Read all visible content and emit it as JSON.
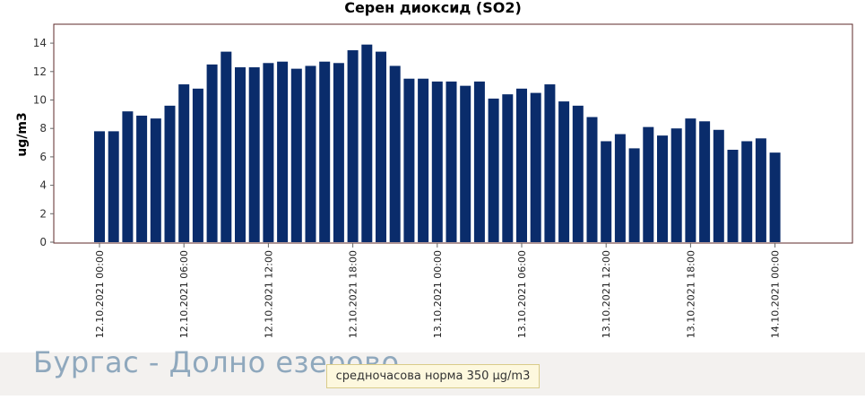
{
  "station": {
    "name": "Бургас - Долно езерово"
  },
  "norm": {
    "text": "средночасова норма 350 µg/m3"
  },
  "colors": {
    "bar": "#0a2c6b",
    "frame": "#5c2a2a",
    "background": "#ffffff"
  },
  "chart_data": {
    "type": "bar",
    "title": "Серен диоксид (SO2)",
    "xlabel": "",
    "ylabel": "ug/m3",
    "ylim": [
      0,
      15.2
    ],
    "yticks": [
      0,
      2,
      4,
      6,
      8,
      10,
      12,
      14
    ],
    "grid": false,
    "legend": "none",
    "x_start": "12.10.2021 00:00",
    "x_end": "14.10.2021 00:00",
    "x_step_hours": 1,
    "x_tick_labels": [
      "12.10.2021 00:00",
      "12.10.2021 06:00",
      "12.10.2021 12:00",
      "12.10.2021 18:00",
      "13.10.2021 00:00",
      "13.10.2021 06:00",
      "13.10.2021 12:00",
      "13.10.2021 18:00",
      "14.10.2021 00:00"
    ],
    "values": [
      7.8,
      7.8,
      9.2,
      8.9,
      8.7,
      9.6,
      11.1,
      10.8,
      12.5,
      13.4,
      12.3,
      12.3,
      12.6,
      12.7,
      12.2,
      12.4,
      12.7,
      12.6,
      13.5,
      13.9,
      13.4,
      12.4,
      11.5,
      11.5,
      11.3,
      11.3,
      11.0,
      11.3,
      10.1,
      10.4,
      10.8,
      10.5,
      11.1,
      9.9,
      9.6,
      8.8,
      7.1,
      7.6,
      6.6,
      8.1,
      7.5,
      8.0,
      8.7,
      8.5,
      7.9,
      6.5,
      7.1,
      7.3,
      6.3
    ]
  }
}
